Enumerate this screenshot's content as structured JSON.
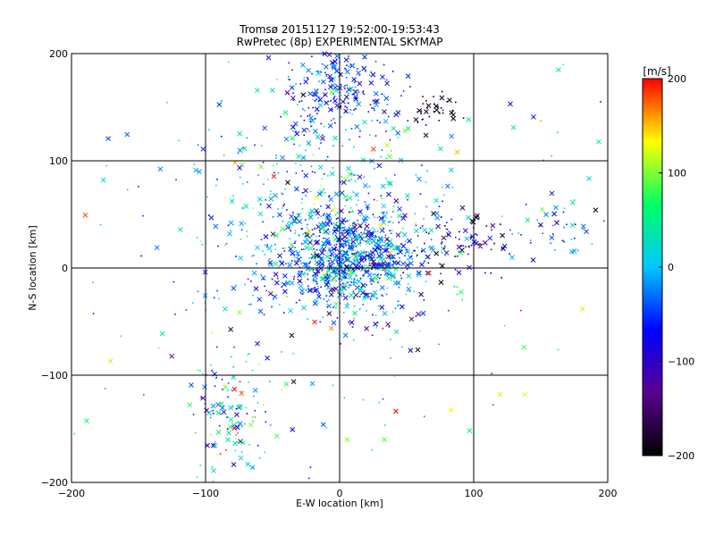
{
  "chart_data": {
    "type": "scatter",
    "title": "Tromsø 20151127 19:52:00-19:53:43",
    "subtitle": "RwPretec (8p) EXPERIMENTAL SKYMAP",
    "xlabel": "E-W location [km]",
    "ylabel": "N-S location [km]",
    "xlim": [
      -200,
      200
    ],
    "ylim": [
      -200,
      200
    ],
    "x_ticks": [
      -200,
      -100,
      0,
      100,
      200
    ],
    "y_ticks": [
      -200,
      -100,
      0,
      100,
      200
    ],
    "x_tick_labels": [
      "−200",
      "−100",
      "0",
      "100",
      "200"
    ],
    "y_tick_labels": [
      "−200",
      "−100",
      "0",
      "100",
      "200"
    ],
    "grid": true,
    "colorbar": {
      "label": "[m/s]",
      "range": [
        -200,
        200
      ],
      "ticks": [
        200,
        100,
        0,
        -100,
        -200
      ],
      "tick_labels": [
        "200",
        "100",
        "0",
        "−100",
        "−200"
      ],
      "colors": [
        "#000000",
        "#5a0090",
        "#0000ff",
        "#00c8ff",
        "#00ff64",
        "#ffff00",
        "#ff0000"
      ]
    },
    "markers": [
      "x",
      "dot"
    ],
    "clusters": [
      {
        "x": 5,
        "y": 10,
        "sx": 28,
        "sy": 25,
        "n": 900,
        "v": -40,
        "vs": 60
      },
      {
        "x": 0,
        "y": 170,
        "sx": 20,
        "sy": 25,
        "n": 260,
        "v": -60,
        "vs": 50
      },
      {
        "x": 72,
        "y": 145,
        "sx": 10,
        "sy": 8,
        "n": 40,
        "v": -190,
        "vs": 15
      },
      {
        "x": -20,
        "y": 60,
        "sx": 45,
        "sy": 50,
        "n": 280,
        "v": 10,
        "vs": 60
      },
      {
        "x": -80,
        "y": -140,
        "sx": 15,
        "sy": 30,
        "n": 120,
        "v": 20,
        "vs": 90
      },
      {
        "x": 90,
        "y": 25,
        "sx": 20,
        "sy": 15,
        "n": 90,
        "v": -130,
        "vs": 70
      },
      {
        "x": 165,
        "y": 40,
        "sx": 15,
        "sy": 15,
        "n": 40,
        "v": -20,
        "vs": 40
      },
      {
        "x": 0,
        "y": 0,
        "sx": 110,
        "sy": 110,
        "n": 260,
        "v": 0,
        "vs": 90
      }
    ]
  }
}
